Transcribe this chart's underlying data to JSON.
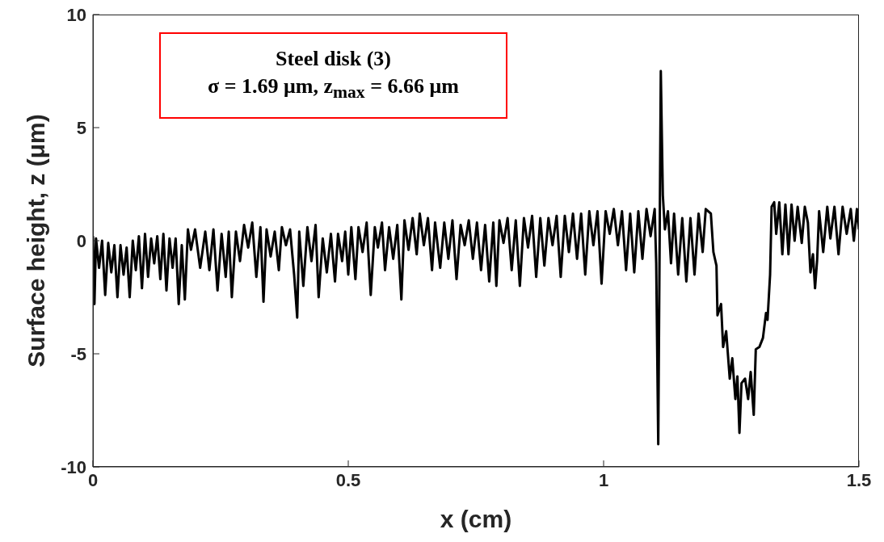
{
  "chart_data": {
    "type": "line",
    "xlabel": "x (cm)",
    "ylabel": "Surface height, z (μm)",
    "annotations": [
      "Steel disk (3)",
      "σ  = 1.69 μm, z$_{max}$  = 6.66 μm"
    ],
    "x": [
      0,
      0.003,
      0.006,
      0.012,
      0.018,
      0.024,
      0.03,
      0.036,
      0.042,
      0.048,
      0.054,
      0.06,
      0.066,
      0.072,
      0.078,
      0.084,
      0.09,
      0.096,
      0.102,
      0.108,
      0.114,
      0.12,
      0.126,
      0.132,
      0.138,
      0.144,
      0.15,
      0.156,
      0.162,
      0.168,
      0.174,
      0.18,
      0.186,
      0.192,
      0.2,
      0.21,
      0.22,
      0.228,
      0.236,
      0.244,
      0.252,
      0.26,
      0.266,
      0.272,
      0.28,
      0.288,
      0.296,
      0.304,
      0.312,
      0.32,
      0.328,
      0.334,
      0.34,
      0.348,
      0.356,
      0.364,
      0.37,
      0.378,
      0.386,
      0.394,
      0.4,
      0.404,
      0.412,
      0.42,
      0.428,
      0.436,
      0.442,
      0.45,
      0.458,
      0.466,
      0.474,
      0.48,
      0.488,
      0.494,
      0.5,
      0.506,
      0.514,
      0.52,
      0.528,
      0.536,
      0.544,
      0.552,
      0.558,
      0.566,
      0.572,
      0.58,
      0.588,
      0.596,
      0.604,
      0.61,
      0.618,
      0.626,
      0.634,
      0.64,
      0.648,
      0.656,
      0.664,
      0.67,
      0.68,
      0.688,
      0.696,
      0.704,
      0.712,
      0.72,
      0.728,
      0.736,
      0.744,
      0.752,
      0.76,
      0.768,
      0.776,
      0.784,
      0.79,
      0.796,
      0.804,
      0.812,
      0.82,
      0.828,
      0.836,
      0.844,
      0.852,
      0.86,
      0.868,
      0.876,
      0.884,
      0.892,
      0.9,
      0.908,
      0.916,
      0.924,
      0.932,
      0.94,
      0.948,
      0.956,
      0.964,
      0.972,
      0.98,
      0.988,
      0.996,
      1.004,
      1.012,
      1.02,
      1.028,
      1.036,
      1.044,
      1.052,
      1.06,
      1.068,
      1.076,
      1.084,
      1.092,
      1.1,
      1.103,
      1.107,
      1.112,
      1.116,
      1.12,
      1.126,
      1.132,
      1.138,
      1.146,
      1.154,
      1.162,
      1.17,
      1.178,
      1.186,
      1.194,
      1.2,
      1.21,
      1.215,
      1.221,
      1.223,
      1.23,
      1.234,
      1.24,
      1.247,
      1.252,
      1.258,
      1.262,
      1.266,
      1.27,
      1.277,
      1.283,
      1.288,
      1.294,
      1.298,
      1.305,
      1.312,
      1.318,
      1.321,
      1.326,
      1.329,
      1.334,
      1.338,
      1.344,
      1.35,
      1.356,
      1.362,
      1.368,
      1.374,
      1.38,
      1.388,
      1.394,
      1.4,
      1.405,
      1.41,
      1.414,
      1.418,
      1.422,
      1.43,
      1.438,
      1.444,
      1.452,
      1.46,
      1.468,
      1.476,
      1.484,
      1.49,
      1.496,
      1.5
    ],
    "series": [
      {
        "color": "#000000",
        "values": [
          0.2,
          -2.8,
          0.1,
          -1.2,
          0,
          -2.4,
          -0.1,
          -1.4,
          -0.2,
          -2.5,
          -0.2,
          -1.5,
          -0.3,
          -2.5,
          0,
          -1.3,
          0.2,
          -2.1,
          0.3,
          -1.6,
          0.1,
          -1,
          0.2,
          -1.7,
          0.3,
          -2.2,
          0.1,
          -1.2,
          0.1,
          -2.8,
          -0.2,
          -2.6,
          0.5,
          -0.4,
          0.5,
          -1.2,
          0.4,
          -1.3,
          0.5,
          -2.2,
          0.3,
          -1.6,
          0.4,
          -2.5,
          0.4,
          -0.9,
          0.7,
          -0.3,
          0.8,
          -1.6,
          0.6,
          -2.7,
          0.5,
          -0.7,
          0.4,
          -1.3,
          0.6,
          -0.2,
          0.5,
          -1.5,
          -3.4,
          0.4,
          -2,
          0.6,
          -0.9,
          0.7,
          -2.5,
          0.1,
          -1.4,
          0.3,
          -1.8,
          0.3,
          -0.9,
          0.4,
          -1.5,
          0.6,
          -1.7,
          0.6,
          -0.5,
          0.8,
          -2.4,
          0.6,
          -0.3,
          0.8,
          -1.3,
          0.6,
          -0.8,
          0.7,
          -2.6,
          0.9,
          -0.4,
          1,
          -0.6,
          1.2,
          -0.2,
          1,
          -1.3,
          0.8,
          -1.2,
          0.8,
          -0.8,
          0.9,
          -1.7,
          0.7,
          -0.2,
          0.9,
          -0.8,
          0.8,
          -1.3,
          0.7,
          -1.8,
          0.8,
          -2,
          0.9,
          -0.1,
          1,
          -1.3,
          0.9,
          -2,
          1,
          -0.3,
          1.1,
          -1.6,
          1,
          -1.1,
          1,
          -0.2,
          1.1,
          -1.6,
          1.1,
          -0.5,
          1.2,
          -0.8,
          1.2,
          -1.5,
          1.3,
          -0.2,
          1.3,
          -1.9,
          1.3,
          0.3,
          1.4,
          -0.2,
          1.3,
          -1.3,
          1.2,
          -1.4,
          1.3,
          -0.8,
          1.4,
          0.2,
          1.4,
          -1,
          -9,
          7.5,
          2,
          0.5,
          1.3,
          -1,
          1.2,
          -1.5,
          1,
          -1.8,
          1,
          -1.5,
          1.2,
          -0.5,
          1.4,
          1.2,
          -0.5,
          -1.1,
          -3.3,
          -2.8,
          -4.7,
          -4,
          -6.1,
          -5.2,
          -7,
          -6,
          -8.5,
          -6.3,
          -6.1,
          -7,
          -5.8,
          -7.7,
          -4.8,
          -4.7,
          -4.3,
          -3.2,
          -3.5,
          -1.5,
          1.5,
          1.7,
          0.3,
          1.7,
          -0.6,
          1.6,
          -0.6,
          1.6,
          0,
          1.5,
          -0.1,
          1.5,
          0.8,
          -1.4,
          -0.6,
          -2.1,
          -0.9,
          1.3,
          -0.5,
          1.5,
          0.1,
          1.5,
          -0.6,
          1.5,
          0.3,
          1.4,
          0,
          1.4,
          0.5
        ]
      }
    ],
    "xlim": [
      0,
      1.5
    ],
    "xticks": [
      0,
      0.5,
      1,
      1.5
    ],
    "ylim": [
      -10,
      10
    ],
    "yticks": [
      -10,
      -5,
      0,
      5,
      10
    ]
  }
}
